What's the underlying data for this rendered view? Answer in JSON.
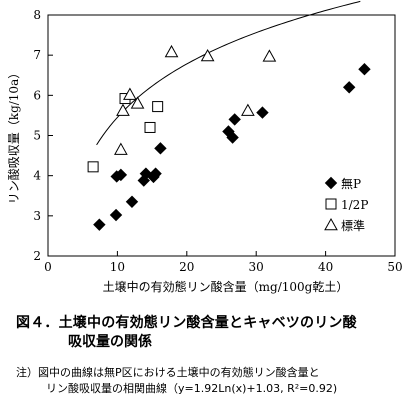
{
  "chart_data": {
    "type": "scatter",
    "ylabel": "リン酸吸収量（kg/10a）",
    "xlabel": "土壌中の有効態リン酸含量（mg/100g乾土）",
    "xlim": [
      0,
      50
    ],
    "ylim": [
      2,
      8
    ],
    "xticks": [
      "0",
      "10",
      "20",
      "30",
      "40",
      "50"
    ],
    "yticks": [
      "2",
      "3",
      "4",
      "5",
      "6",
      "7",
      "8"
    ],
    "legend_position": "lower-right",
    "series": [
      {
        "name": "無P",
        "marker": "diamond",
        "points": [
          [
            7.4,
            2.78
          ],
          [
            9.8,
            3.02
          ],
          [
            9.9,
            3.98
          ],
          [
            10.5,
            4.02
          ],
          [
            12.1,
            3.35
          ],
          [
            13.8,
            3.88
          ],
          [
            14.1,
            4.05
          ],
          [
            15.2,
            3.97
          ],
          [
            15.5,
            4.05
          ],
          [
            16.2,
            4.68
          ],
          [
            26.0,
            5.1
          ],
          [
            26.6,
            4.95
          ],
          [
            26.9,
            5.4
          ],
          [
            30.9,
            5.57
          ],
          [
            43.4,
            6.2
          ],
          [
            45.6,
            6.65
          ]
        ]
      },
      {
        "name": "1/2P",
        "marker": "square",
        "points": [
          [
            6.5,
            4.22
          ],
          [
            11.1,
            5.92
          ],
          [
            14.7,
            5.2
          ],
          [
            15.8,
            5.72
          ]
        ]
      },
      {
        "name": "標準",
        "marker": "triangle",
        "points": [
          [
            10.5,
            4.65
          ],
          [
            10.8,
            5.62
          ],
          [
            11.8,
            6.02
          ],
          [
            12.9,
            5.8
          ],
          [
            17.8,
            7.08
          ],
          [
            23.0,
            6.98
          ],
          [
            28.8,
            5.62
          ],
          [
            31.9,
            6.97
          ]
        ]
      }
    ],
    "curve": {
      "fit": "log",
      "a": 1.92,
      "b": 1.03,
      "x_range": [
        7.0,
        45.0
      ]
    }
  },
  "caption": {
    "title_line1": "図４．土壌中の有効態リン酸含量とキャベツのリン酸",
    "title_line2": "吸収量の関係",
    "note_line1": "注）図中の曲線は無P区における土壌中の有効態リン酸含量と",
    "note_line2": "リン酸吸収量の相関曲線（y=1.92Ln(x)+1.03, R²=0.92)"
  }
}
